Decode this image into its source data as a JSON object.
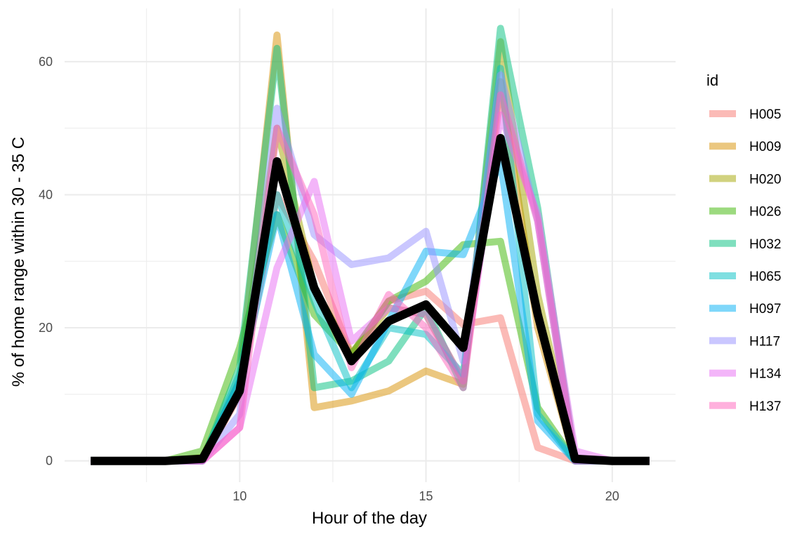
{
  "chart_data": {
    "type": "line",
    "xlabel": "Hour of the day",
    "ylabel": "% of home range within 30 - 35 C",
    "xlim": [
      5.3,
      21.7
    ],
    "ylim": [
      -3.2,
      68
    ],
    "xticks": [
      10,
      15,
      20
    ],
    "yticks": [
      0,
      20,
      40,
      60
    ],
    "x_minor": [
      7.5,
      12.5,
      17.5
    ],
    "y_minor": [
      10,
      30,
      50
    ],
    "grid": true,
    "legend_title": "id",
    "legend_position": "right",
    "series": [
      {
        "name": "H005",
        "color": "#F8766D",
        "x": [
          6,
          7,
          8,
          9,
          10,
          11,
          12,
          13,
          14,
          15,
          16,
          17,
          18,
          19,
          20,
          21
        ],
        "values": [
          0,
          0,
          0,
          0,
          10,
          40,
          30,
          16,
          24,
          25.5,
          20.5,
          21.5,
          2,
          0,
          0,
          0
        ]
      },
      {
        "name": "H009",
        "color": "#D89000",
        "x": [
          6,
          7,
          8,
          9,
          10,
          11,
          12,
          13,
          14,
          15,
          16,
          17,
          18,
          19,
          20,
          21
        ],
        "values": [
          0,
          0,
          0,
          0,
          12,
          64,
          8,
          9,
          10.5,
          13.5,
          11.5,
          57,
          20,
          0,
          0,
          0
        ]
      },
      {
        "name": "H020",
        "color": "#A3A500",
        "x": [
          6,
          7,
          8,
          9,
          10,
          11,
          12,
          13,
          14,
          15,
          16,
          17,
          18,
          19,
          20,
          21
        ],
        "values": [
          0,
          0,
          0,
          0.5,
          12,
          50,
          26,
          16,
          23,
          22,
          12,
          63,
          25,
          0,
          0,
          0
        ]
      },
      {
        "name": "H026",
        "color": "#39B600",
        "x": [
          6,
          7,
          8,
          9,
          10,
          11,
          12,
          13,
          14,
          15,
          16,
          17,
          18,
          19,
          20,
          21
        ],
        "values": [
          0,
          0,
          0,
          1.5,
          17,
          37,
          22,
          16,
          24,
          27,
          32.5,
          33,
          8,
          0,
          0,
          0
        ]
      },
      {
        "name": "H032",
        "color": "#00BF7D",
        "x": [
          6,
          7,
          8,
          9,
          10,
          11,
          12,
          13,
          14,
          15,
          16,
          17,
          18,
          19,
          20,
          21
        ],
        "values": [
          0,
          0,
          0,
          0,
          14,
          62,
          11,
          12,
          15,
          23,
          11,
          65,
          38,
          0,
          0,
          0
        ]
      },
      {
        "name": "H065",
        "color": "#00BFC4",
        "x": [
          6,
          7,
          8,
          9,
          10,
          11,
          12,
          13,
          14,
          15,
          16,
          17,
          18,
          19,
          20,
          21
        ],
        "values": [
          0,
          0,
          0,
          0,
          13,
          40,
          24,
          11,
          20,
          19,
          13,
          59,
          7,
          0,
          0,
          0
        ]
      },
      {
        "name": "H097",
        "color": "#00B0F6",
        "x": [
          6,
          7,
          8,
          9,
          10,
          11,
          12,
          13,
          14,
          15,
          16,
          17,
          18,
          19,
          20,
          21
        ],
        "values": [
          0,
          0,
          0,
          0,
          12,
          37,
          16,
          10,
          21,
          31.5,
          31,
          45,
          6,
          0,
          0,
          0
        ]
      },
      {
        "name": "H117",
        "color": "#9590FF",
        "x": [
          6,
          7,
          8,
          9,
          10,
          11,
          12,
          13,
          14,
          15,
          16,
          17,
          18,
          19,
          20,
          21
        ],
        "values": [
          0,
          0,
          0,
          0,
          7,
          53,
          34,
          29.5,
          30.5,
          34.5,
          15,
          58,
          36,
          0,
          0,
          0
        ]
      },
      {
        "name": "H134",
        "color": "#E76BF3",
        "x": [
          6,
          7,
          8,
          9,
          10,
          11,
          12,
          13,
          14,
          15,
          16,
          17,
          18,
          19,
          20,
          21
        ],
        "values": [
          0,
          0,
          0,
          0,
          5,
          29,
          42,
          18,
          23,
          22,
          12,
          52,
          37,
          1.5,
          0,
          0
        ]
      },
      {
        "name": "H137",
        "color": "#FF62BC",
        "x": [
          6,
          7,
          8,
          9,
          10,
          11,
          12,
          13,
          14,
          15,
          16,
          17,
          18,
          19,
          20,
          21
        ],
        "values": [
          0,
          0,
          0,
          0,
          5,
          50,
          37,
          14,
          25,
          20,
          11,
          55,
          36,
          0,
          0,
          0
        ]
      },
      {
        "name": "",
        "color": "#000000",
        "x": [
          6,
          7,
          8,
          9,
          10,
          11,
          12,
          13,
          14,
          15,
          16,
          17,
          18,
          19,
          20,
          21
        ],
        "values": [
          0,
          0,
          0,
          0.3,
          10.5,
          45,
          26,
          15,
          21,
          23.5,
          17,
          48.5,
          22,
          0.3,
          0,
          0
        ]
      }
    ]
  }
}
